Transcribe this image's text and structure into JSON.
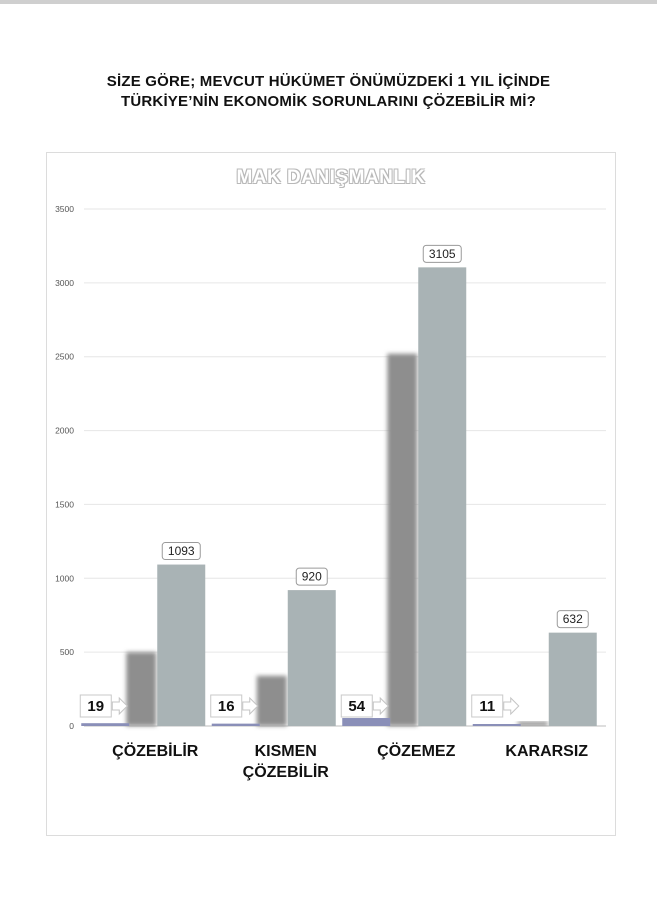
{
  "page": {
    "title_line1": "SİZE GÖRE; MEVCUT HÜKÜMET ÖNÜMÜZDEKİ 1 YIL İÇİNDE",
    "title_line2": "TÜRKİYE’NİN EKONOMİK SORUNLARINI ÇÖZEBİLİR Mİ?"
  },
  "chart_data": {
    "type": "bar",
    "title": "MAK DANIŞMANLIK",
    "ylim": [
      0,
      3500
    ],
    "yticks": [
      0,
      500,
      1000,
      1500,
      2000,
      2500,
      3000,
      3500
    ],
    "grid": true,
    "categories": [
      [
        "ÇÖZEBİLİR"
      ],
      [
        "KISMEN",
        "ÇÖZEBİLİR"
      ],
      [
        "ÇÖZEMEZ"
      ],
      [
        "KARARSIZ"
      ]
    ],
    "series": [
      {
        "values": [
          19,
          16,
          54,
          11
        ],
        "color": "#8a8fb8",
        "labels": [
          "19",
          "16",
          "54",
          "11"
        ]
      },
      {
        "values": [
          500,
          340,
          2520,
          30
        ],
        "color": "#8e8e8e",
        "labels": []
      },
      {
        "values": [
          1093,
          920,
          3105,
          632
        ],
        "color": "#a9b3b5",
        "labels": [
          "1093",
          "920",
          "3105",
          "632"
        ]
      }
    ]
  }
}
